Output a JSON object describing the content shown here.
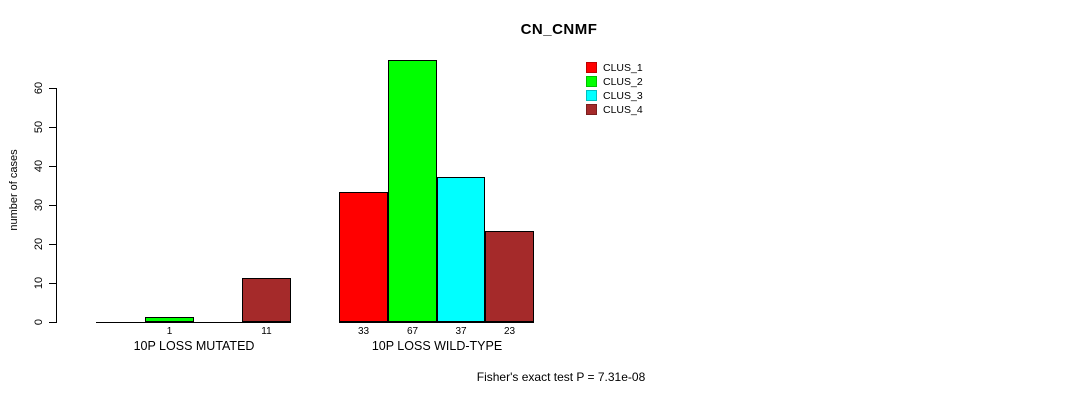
{
  "chart_data": {
    "type": "bar",
    "title": "CN_CNMF",
    "ylabel": "number of cases",
    "xlabel": "",
    "categories": [
      "10P LOSS MUTATED",
      "10P LOSS WILD-TYPE"
    ],
    "series": [
      {
        "name": "CLUS_1",
        "color": "#FF0000",
        "values": [
          0,
          33
        ]
      },
      {
        "name": "CLUS_2",
        "color": "#00FF00",
        "values": [
          1,
          67
        ]
      },
      {
        "name": "CLUS_3",
        "color": "#00FFFF",
        "values": [
          0,
          37
        ]
      },
      {
        "name": "CLUS_4",
        "color": "#A52A2A",
        "values": [
          11,
          23
        ]
      }
    ],
    "bar_value_labels": [
      [
        "",
        "1",
        "",
        "11"
      ],
      [
        "33",
        "67",
        "37",
        "23"
      ]
    ],
    "yticks": [
      "0",
      "10",
      "20",
      "30",
      "40",
      "50",
      "60"
    ],
    "ylim": [
      0,
      67
    ],
    "grid": false,
    "legend_position": "top-right",
    "legend_entries": [
      "CLUS_1",
      "CLUS_2",
      "CLUS_3",
      "CLUS_4"
    ],
    "annotation": "Fisher's exact test P = 7.31e-08"
  }
}
